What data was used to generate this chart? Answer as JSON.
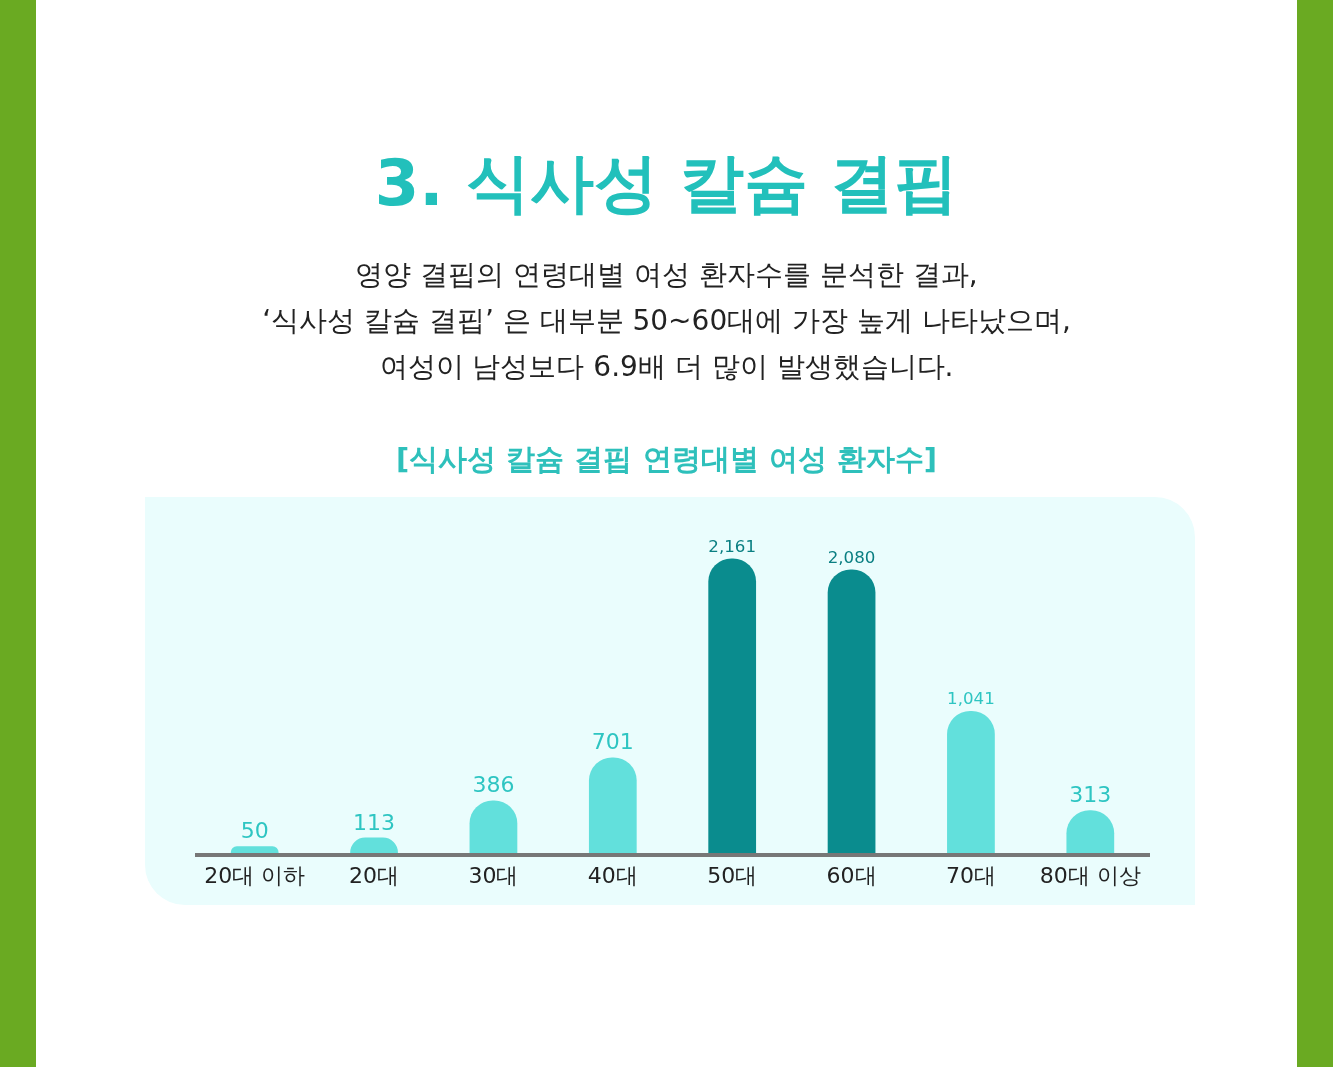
{
  "chart_data": {
    "type": "bar",
    "title": "3. 식사성 칼슘 결핍",
    "subtitle": "영양 결핍의 연령대별 여성 환자수를 분석한 결과,\n‘식사성 칼슘 결핍’ 은  대부분 50~60대에 가장 높게 나타났으며,\n여성이 남성보다 6.9배 더 많이 발생했습니다.",
    "annotations": [
      "[식사성 칼슘 결핍 연령대별 여성 환자수]"
    ],
    "categories": [
      "20대 이하",
      "20대",
      "30대",
      "40대",
      "50대",
      "60대",
      "70대",
      "80대 이상"
    ],
    "values": [
      50,
      113,
      386,
      701,
      2161,
      2080,
      1041,
      313
    ],
    "value_labels": [
      "50",
      "113",
      "386",
      "701",
      "2,161",
      "2,080",
      "1,041",
      "313"
    ],
    "colors": [
      "#62e0dc",
      "#62e0dc",
      "#62e0dc",
      "#62e0dc",
      "#0a8c8e",
      "#0a8c8e",
      "#62e0dc",
      "#62e0dc"
    ],
    "grid": false
  }
}
